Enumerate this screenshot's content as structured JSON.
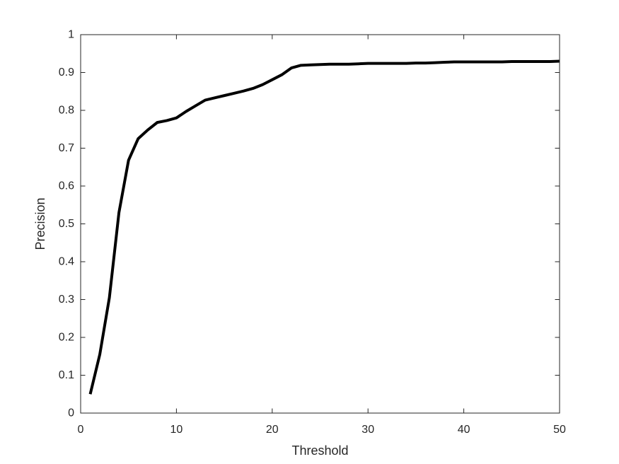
{
  "chart_data": {
    "type": "line",
    "title": "",
    "xlabel": "Threshold",
    "ylabel": "Precision",
    "xlim": [
      0,
      50
    ],
    "ylim": [
      0,
      1
    ],
    "grid": false,
    "x_ticks": [
      "0",
      "10",
      "20",
      "30",
      "40",
      "50"
    ],
    "y_ticks": [
      "0",
      "0.1",
      "0.2",
      "0.3",
      "0.4",
      "0.5",
      "0.6",
      "0.7",
      "0.8",
      "0.9",
      "1"
    ],
    "line_color": "#000000",
    "series": [
      {
        "x": [
          1,
          2,
          3,
          4,
          5,
          6,
          7,
          8,
          9,
          10,
          11,
          12,
          13,
          14,
          15,
          16,
          17,
          18,
          19,
          20,
          21,
          22,
          23,
          24,
          25,
          26,
          27,
          28,
          29,
          30,
          31,
          32,
          33,
          34,
          35,
          36,
          37,
          38,
          39,
          40,
          41,
          42,
          43,
          44,
          45,
          46,
          47,
          48,
          49,
          50
        ],
        "y": [
          0.05,
          0.155,
          0.305,
          0.53,
          0.668,
          0.725,
          0.748,
          0.768,
          0.773,
          0.78,
          0.797,
          0.812,
          0.827,
          0.833,
          0.839,
          0.845,
          0.851,
          0.858,
          0.868,
          0.881,
          0.894,
          0.912,
          0.919,
          0.92,
          0.921,
          0.922,
          0.922,
          0.922,
          0.923,
          0.924,
          0.924,
          0.924,
          0.924,
          0.924,
          0.925,
          0.925,
          0.926,
          0.927,
          0.928,
          0.928,
          0.928,
          0.928,
          0.928,
          0.928,
          0.929,
          0.929,
          0.929,
          0.929,
          0.929,
          0.93
        ]
      }
    ]
  }
}
